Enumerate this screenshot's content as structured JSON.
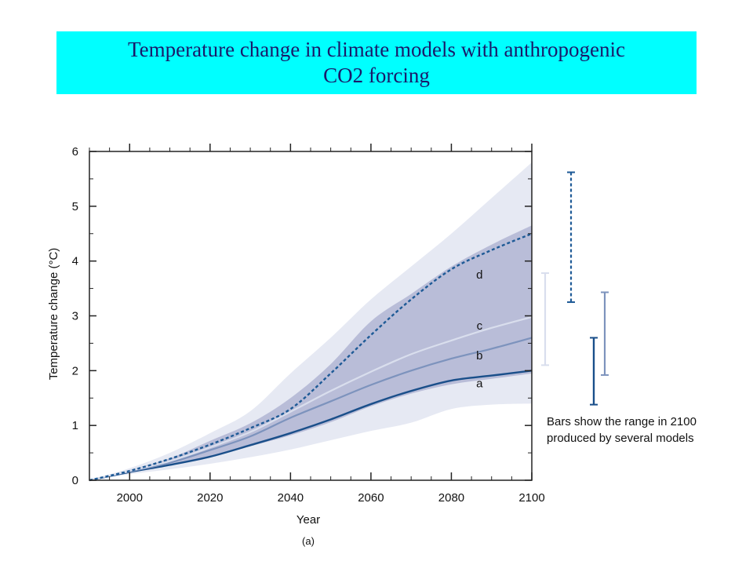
{
  "title": {
    "line1": "Temperature change in climate models with anthropogenic",
    "line2": "CO2 forcing"
  },
  "colors": {
    "title_bg": "#00ffff",
    "outer_band": "#e6e9f3",
    "inner_band": "#b9bdd8",
    "line_a": "#1a4f8a",
    "line_b": "#7d93bd",
    "line_c": "#d9deed",
    "line_d": "#1e5a96"
  },
  "chart_data": {
    "type": "line",
    "title": "",
    "xlabel": "Year",
    "ylabel": "Temperature change (°C)",
    "caption": "(a)",
    "xlim": [
      1990,
      2100
    ],
    "ylim": [
      0,
      6
    ],
    "xticks": [
      2000,
      2020,
      2040,
      2060,
      2080,
      2100
    ],
    "yticks": [
      0,
      1,
      2,
      3,
      4,
      5,
      6
    ],
    "x": [
      1990,
      2000,
      2010,
      2020,
      2030,
      2040,
      2050,
      2060,
      2070,
      2080,
      2090,
      2100
    ],
    "series": [
      {
        "name": "a",
        "style": "solid",
        "values": [
          0.0,
          0.15,
          0.28,
          0.43,
          0.64,
          0.86,
          1.11,
          1.39,
          1.63,
          1.82,
          1.91,
          2.0
        ]
      },
      {
        "name": "b",
        "style": "solid",
        "values": [
          0.0,
          0.16,
          0.32,
          0.55,
          0.8,
          1.14,
          1.44,
          1.74,
          2.0,
          2.22,
          2.4,
          2.6
        ]
      },
      {
        "name": "c",
        "style": "solid",
        "values": [
          0.0,
          0.17,
          0.35,
          0.6,
          0.88,
          1.25,
          1.63,
          1.98,
          2.3,
          2.55,
          2.78,
          2.98
        ]
      },
      {
        "name": "d",
        "style": "dashed",
        "values": [
          0.0,
          0.17,
          0.39,
          0.65,
          0.95,
          1.3,
          1.95,
          2.65,
          3.3,
          3.85,
          4.2,
          4.5
        ]
      }
    ],
    "bands": [
      {
        "name": "outer_range",
        "upper": [
          0.0,
          0.22,
          0.5,
          0.86,
          1.26,
          1.95,
          2.6,
          3.3,
          3.9,
          4.5,
          5.15,
          5.8
        ],
        "lower": [
          0.0,
          0.11,
          0.2,
          0.3,
          0.42,
          0.56,
          0.73,
          0.9,
          1.05,
          1.3,
          1.38,
          1.4
        ]
      },
      {
        "name": "inner_range",
        "upper": [
          0.0,
          0.19,
          0.4,
          0.72,
          1.04,
          1.5,
          2.12,
          2.9,
          3.4,
          3.9,
          4.3,
          4.65
        ],
        "lower": [
          0.0,
          0.14,
          0.27,
          0.42,
          0.62,
          0.82,
          1.06,
          1.35,
          1.58,
          1.75,
          1.85,
          1.95
        ]
      }
    ],
    "range_bars_2100": [
      {
        "name": "c",
        "low": 2.1,
        "high": 3.78
      },
      {
        "name": "d",
        "low": 3.25,
        "high": 5.62
      },
      {
        "name": "a",
        "low": 1.38,
        "high": 2.6
      },
      {
        "name": "b",
        "low": 1.92,
        "high": 3.43
      }
    ],
    "note": {
      "line1": "Bars show the range in 2100",
      "line2": "produced by several models"
    }
  }
}
